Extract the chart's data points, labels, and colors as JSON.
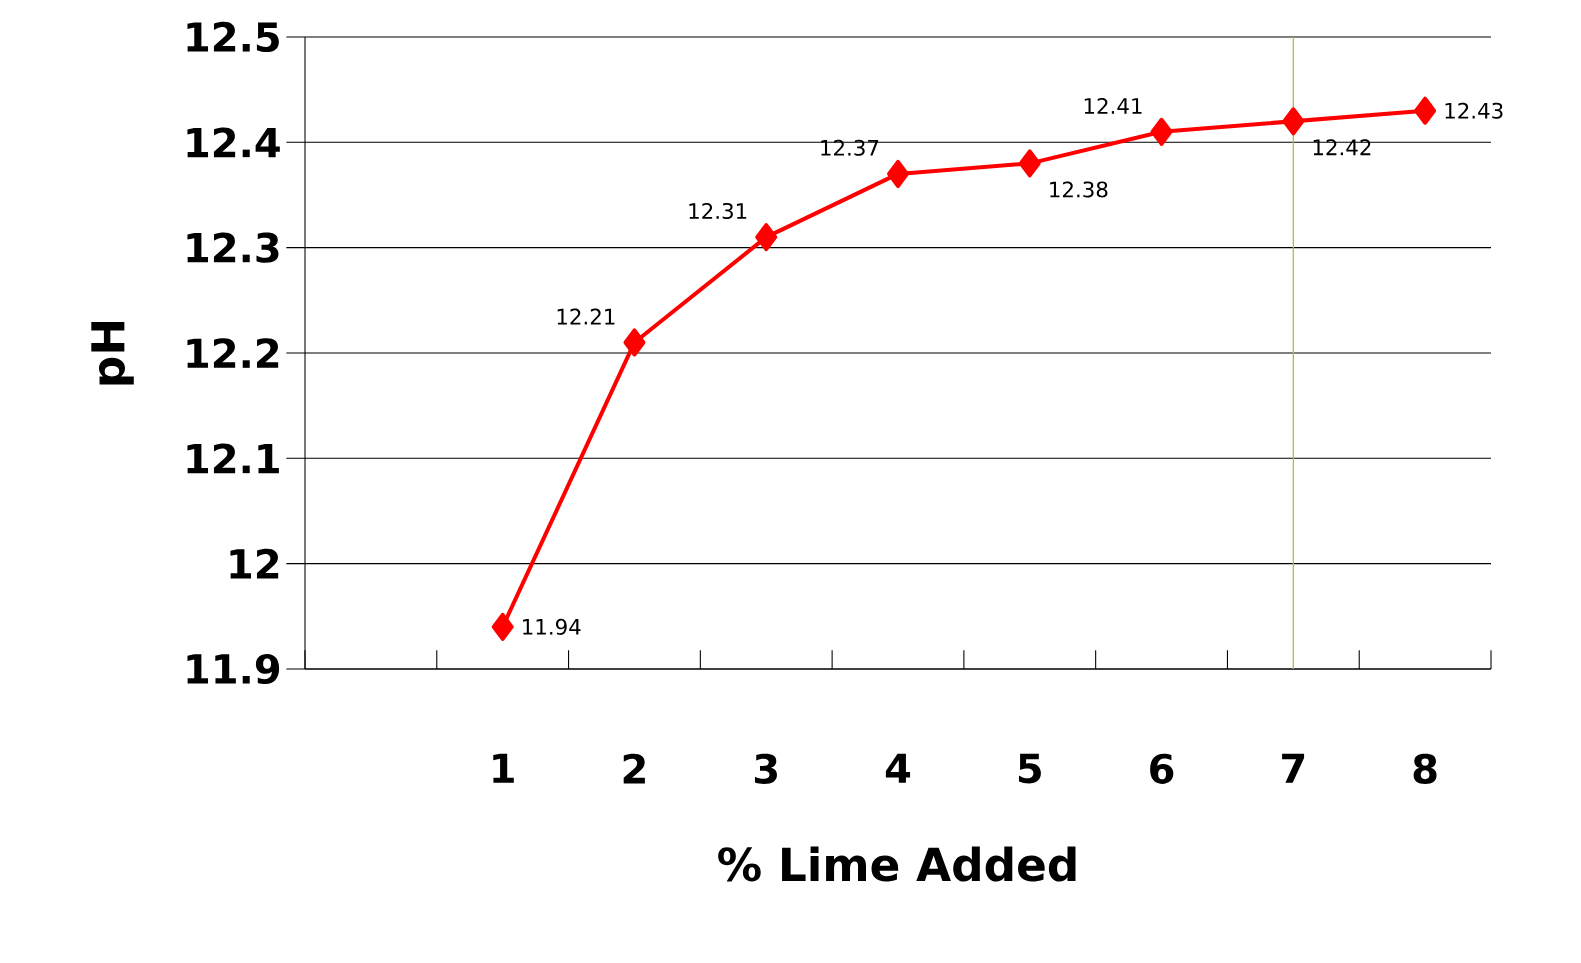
{
  "chart_data": {
    "type": "line",
    "xlabel": "% Lime Added",
    "ylabel": "pH",
    "categories": [
      null,
      "1",
      "2",
      "3",
      "4",
      "5",
      "6",
      "7",
      "8"
    ],
    "series": [
      {
        "color": "#ff0000",
        "values": [
          null,
          11.94,
          12.21,
          12.31,
          12.37,
          12.38,
          12.41,
          12.42,
          12.43
        ]
      }
    ],
    "ylim": [
      11.9,
      12.5
    ],
    "yticks": [
      11.9,
      12,
      12.1,
      12.2,
      12.3,
      12.4,
      12.5
    ],
    "grid": "y",
    "marker": "diamond",
    "line_style": "solid",
    "data_labels": true,
    "ref_lines": [
      {
        "axis": "x",
        "value": "7",
        "color": "#9acd32"
      }
    ]
  }
}
